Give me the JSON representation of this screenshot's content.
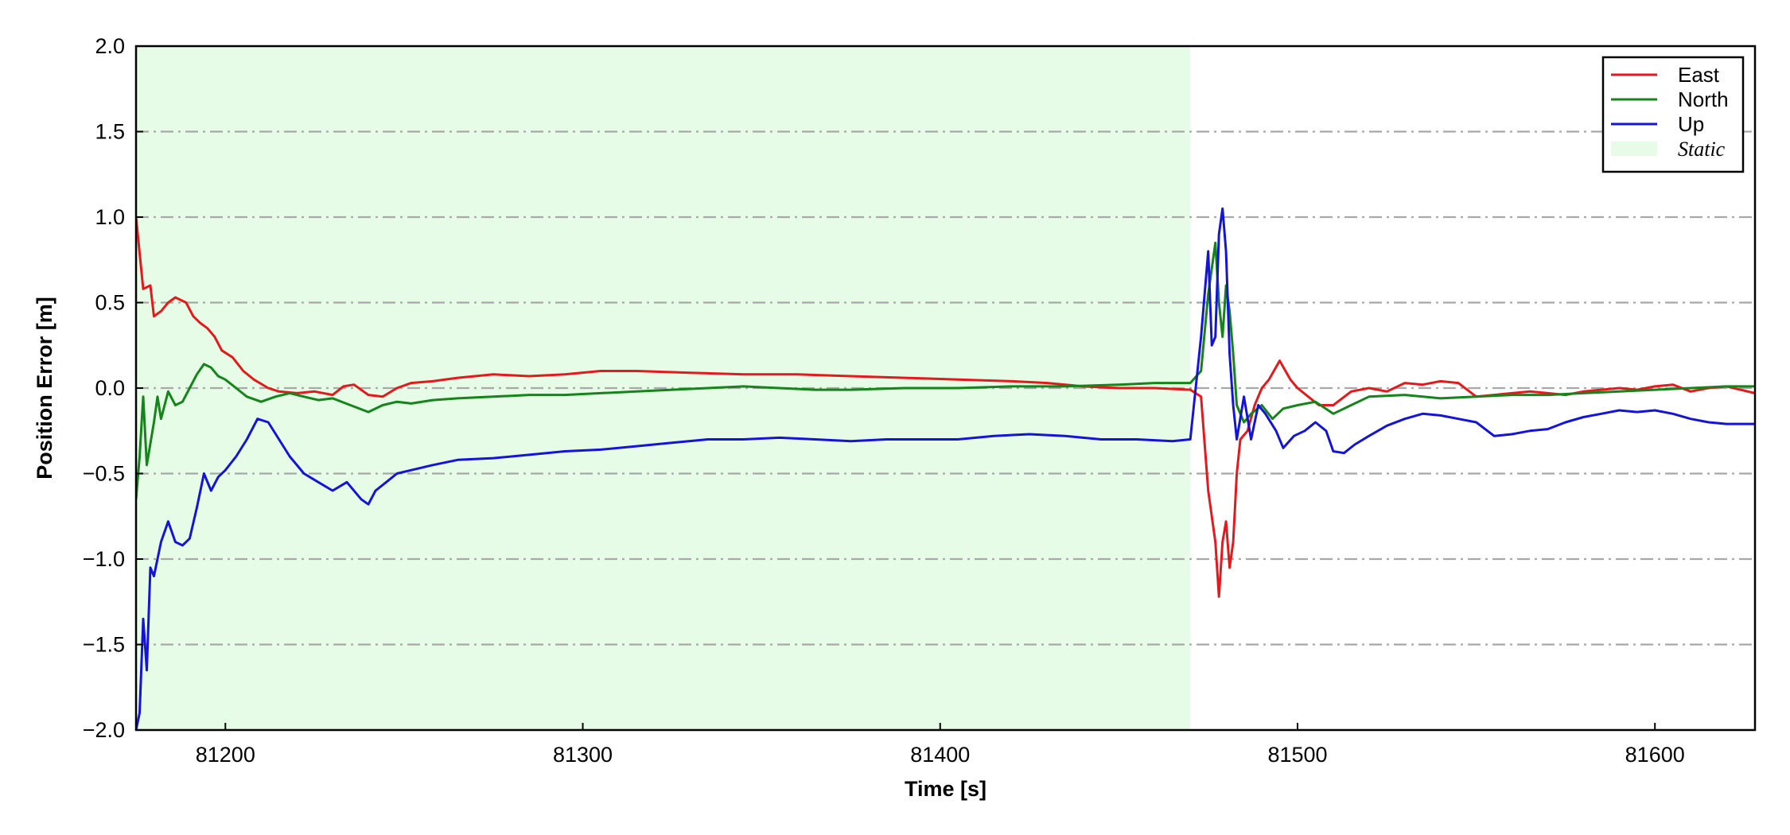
{
  "chart_data": {
    "type": "line",
    "title": "",
    "xlabel": "Time [s]",
    "ylabel": "Position Error [m]",
    "xlim": [
      81175,
      81628
    ],
    "ylim": [
      -2.0,
      2.0
    ],
    "xticks": [
      81200,
      81300,
      81400,
      81500,
      81600
    ],
    "xtick_labels": [
      "81200",
      "81300",
      "81400",
      "81500",
      "81600"
    ],
    "yticks": [
      2.0,
      1.5,
      1.0,
      0.5,
      0.0,
      -0.5,
      -1.0,
      -1.5,
      -2.0
    ],
    "ytick_labels": [
      "2.0",
      "1.5",
      "1.0",
      "0.5",
      "0.0",
      "−0.5",
      "−1.0",
      "−1.5",
      "−2.0"
    ],
    "grid": "horizontal dash-dot",
    "legend_position": "top-right",
    "shaded_regions": [
      {
        "name": "Static",
        "x_start": 81175,
        "x_end": 81470,
        "color": "#e6fce6"
      }
    ],
    "series": [
      {
        "name": "East",
        "color": "#e31a1c",
        "points": [
          [
            81175,
            1.0
          ],
          [
            81177,
            0.58
          ],
          [
            81179,
            0.6
          ],
          [
            81180,
            0.42
          ],
          [
            81182,
            0.45
          ],
          [
            81184,
            0.5
          ],
          [
            81186,
            0.53
          ],
          [
            81189,
            0.5
          ],
          [
            81191,
            0.42
          ],
          [
            81193,
            0.38
          ],
          [
            81195,
            0.35
          ],
          [
            81197,
            0.3
          ],
          [
            81199,
            0.22
          ],
          [
            81202,
            0.18
          ],
          [
            81205,
            0.1
          ],
          [
            81208,
            0.05
          ],
          [
            81212,
            0.0
          ],
          [
            81215,
            -0.02
          ],
          [
            81220,
            -0.03
          ],
          [
            81225,
            -0.02
          ],
          [
            81230,
            -0.04
          ],
          [
            81233,
            0.01
          ],
          [
            81236,
            0.02
          ],
          [
            81240,
            -0.04
          ],
          [
            81244,
            -0.05
          ],
          [
            81248,
            0.0
          ],
          [
            81252,
            0.03
          ],
          [
            81258,
            0.04
          ],
          [
            81265,
            0.06
          ],
          [
            81275,
            0.08
          ],
          [
            81285,
            0.07
          ],
          [
            81295,
            0.08
          ],
          [
            81305,
            0.1
          ],
          [
            81315,
            0.1
          ],
          [
            81330,
            0.09
          ],
          [
            81345,
            0.08
          ],
          [
            81360,
            0.08
          ],
          [
            81375,
            0.07
          ],
          [
            81390,
            0.06
          ],
          [
            81405,
            0.05
          ],
          [
            81420,
            0.04
          ],
          [
            81430,
            0.03
          ],
          [
            81440,
            0.01
          ],
          [
            81450,
            0.0
          ],
          [
            81460,
            0.0
          ],
          [
            81470,
            -0.01
          ],
          [
            81473,
            -0.05
          ],
          [
            81475,
            -0.6
          ],
          [
            81477,
            -0.9
          ],
          [
            81478,
            -1.22
          ],
          [
            81479,
            -0.9
          ],
          [
            81480,
            -0.78
          ],
          [
            81481,
            -1.05
          ],
          [
            81482,
            -0.9
          ],
          [
            81483,
            -0.5
          ],
          [
            81484,
            -0.3
          ],
          [
            81486,
            -0.25
          ],
          [
            81488,
            -0.1
          ],
          [
            81490,
            0.0
          ],
          [
            81492,
            0.05
          ],
          [
            81495,
            0.16
          ],
          [
            81498,
            0.05
          ],
          [
            81500,
            0.0
          ],
          [
            81503,
            -0.05
          ],
          [
            81506,
            -0.1
          ],
          [
            81510,
            -0.1
          ],
          [
            81515,
            -0.02
          ],
          [
            81520,
            0.0
          ],
          [
            81525,
            -0.02
          ],
          [
            81530,
            0.03
          ],
          [
            81535,
            0.02
          ],
          [
            81540,
            0.04
          ],
          [
            81545,
            0.03
          ],
          [
            81550,
            -0.05
          ],
          [
            81555,
            -0.04
          ],
          [
            81560,
            -0.03
          ],
          [
            81565,
            -0.02
          ],
          [
            81570,
            -0.03
          ],
          [
            81575,
            -0.04
          ],
          [
            81580,
            -0.02
          ],
          [
            81585,
            -0.01
          ],
          [
            81590,
            0.0
          ],
          [
            81595,
            -0.01
          ],
          [
            81600,
            0.01
          ],
          [
            81605,
            0.02
          ],
          [
            81610,
            -0.02
          ],
          [
            81615,
            0.0
          ],
          [
            81620,
            0.01
          ],
          [
            81628,
            -0.03
          ]
        ]
      },
      {
        "name": "North",
        "color": "#15841a",
        "points": [
          [
            81175,
            -0.65
          ],
          [
            81176,
            -0.4
          ],
          [
            81177,
            -0.05
          ],
          [
            81178,
            -0.45
          ],
          [
            81180,
            -0.2
          ],
          [
            81181,
            -0.05
          ],
          [
            81182,
            -0.18
          ],
          [
            81184,
            -0.02
          ],
          [
            81186,
            -0.1
          ],
          [
            81188,
            -0.08
          ],
          [
            81190,
            0.0
          ],
          [
            81192,
            0.08
          ],
          [
            81194,
            0.14
          ],
          [
            81196,
            0.12
          ],
          [
            81198,
            0.07
          ],
          [
            81200,
            0.05
          ],
          [
            81203,
            0.0
          ],
          [
            81206,
            -0.05
          ],
          [
            81210,
            -0.08
          ],
          [
            81214,
            -0.05
          ],
          [
            81218,
            -0.03
          ],
          [
            81222,
            -0.05
          ],
          [
            81226,
            -0.07
          ],
          [
            81230,
            -0.06
          ],
          [
            81235,
            -0.1
          ],
          [
            81240,
            -0.14
          ],
          [
            81244,
            -0.1
          ],
          [
            81248,
            -0.08
          ],
          [
            81252,
            -0.09
          ],
          [
            81258,
            -0.07
          ],
          [
            81265,
            -0.06
          ],
          [
            81275,
            -0.05
          ],
          [
            81285,
            -0.04
          ],
          [
            81295,
            -0.04
          ],
          [
            81305,
            -0.03
          ],
          [
            81315,
            -0.02
          ],
          [
            81325,
            -0.01
          ],
          [
            81335,
            0.0
          ],
          [
            81345,
            0.01
          ],
          [
            81355,
            0.0
          ],
          [
            81365,
            -0.01
          ],
          [
            81375,
            -0.01
          ],
          [
            81390,
            0.0
          ],
          [
            81405,
            0.0
          ],
          [
            81420,
            0.01
          ],
          [
            81435,
            0.01
          ],
          [
            81450,
            0.02
          ],
          [
            81460,
            0.03
          ],
          [
            81470,
            0.03
          ],
          [
            81473,
            0.1
          ],
          [
            81475,
            0.55
          ],
          [
            81477,
            0.85
          ],
          [
            81478,
            0.5
          ],
          [
            81479,
            0.3
          ],
          [
            81480,
            0.6
          ],
          [
            81481,
            0.45
          ],
          [
            81482,
            0.2
          ],
          [
            81483,
            -0.1
          ],
          [
            81485,
            -0.2
          ],
          [
            81487,
            -0.15
          ],
          [
            81490,
            -0.1
          ],
          [
            81493,
            -0.18
          ],
          [
            81496,
            -0.12
          ],
          [
            81500,
            -0.1
          ],
          [
            81505,
            -0.08
          ],
          [
            81510,
            -0.15
          ],
          [
            81515,
            -0.1
          ],
          [
            81520,
            -0.05
          ],
          [
            81530,
            -0.04
          ],
          [
            81540,
            -0.06
          ],
          [
            81550,
            -0.05
          ],
          [
            81560,
            -0.04
          ],
          [
            81570,
            -0.04
          ],
          [
            81580,
            -0.03
          ],
          [
            81590,
            -0.02
          ],
          [
            81600,
            -0.01
          ],
          [
            81610,
            0.0
          ],
          [
            81620,
            0.01
          ],
          [
            81628,
            0.01
          ]
        ]
      },
      {
        "name": "Up",
        "color": "#1414d8",
        "points": [
          [
            81175,
            -2.0
          ],
          [
            81176,
            -1.9
          ],
          [
            81177,
            -1.35
          ],
          [
            81178,
            -1.65
          ],
          [
            81179,
            -1.05
          ],
          [
            81180,
            -1.1
          ],
          [
            81182,
            -0.9
          ],
          [
            81184,
            -0.78
          ],
          [
            81186,
            -0.9
          ],
          [
            81188,
            -0.92
          ],
          [
            81190,
            -0.88
          ],
          [
            81192,
            -0.7
          ],
          [
            81194,
            -0.5
          ],
          [
            81196,
            -0.6
          ],
          [
            81198,
            -0.52
          ],
          [
            81200,
            -0.48
          ],
          [
            81203,
            -0.4
          ],
          [
            81206,
            -0.3
          ],
          [
            81209,
            -0.18
          ],
          [
            81212,
            -0.2
          ],
          [
            81215,
            -0.3
          ],
          [
            81218,
            -0.4
          ],
          [
            81222,
            -0.5
          ],
          [
            81226,
            -0.55
          ],
          [
            81230,
            -0.6
          ],
          [
            81234,
            -0.55
          ],
          [
            81238,
            -0.65
          ],
          [
            81240,
            -0.68
          ],
          [
            81242,
            -0.6
          ],
          [
            81245,
            -0.55
          ],
          [
            81248,
            -0.5
          ],
          [
            81252,
            -0.48
          ],
          [
            81258,
            -0.45
          ],
          [
            81265,
            -0.42
          ],
          [
            81275,
            -0.41
          ],
          [
            81285,
            -0.39
          ],
          [
            81295,
            -0.37
          ],
          [
            81305,
            -0.36
          ],
          [
            81315,
            -0.34
          ],
          [
            81325,
            -0.32
          ],
          [
            81335,
            -0.3
          ],
          [
            81345,
            -0.3
          ],
          [
            81355,
            -0.29
          ],
          [
            81365,
            -0.3
          ],
          [
            81375,
            -0.31
          ],
          [
            81385,
            -0.3
          ],
          [
            81395,
            -0.3
          ],
          [
            81405,
            -0.3
          ],
          [
            81415,
            -0.28
          ],
          [
            81425,
            -0.27
          ],
          [
            81435,
            -0.28
          ],
          [
            81445,
            -0.3
          ],
          [
            81455,
            -0.3
          ],
          [
            81465,
            -0.31
          ],
          [
            81470,
            -0.3
          ],
          [
            81473,
            0.3
          ],
          [
            81475,
            0.8
          ],
          [
            81476,
            0.25
          ],
          [
            81477,
            0.3
          ],
          [
            81478,
            0.9
          ],
          [
            81479,
            1.05
          ],
          [
            81480,
            0.8
          ],
          [
            81481,
            0.2
          ],
          [
            81482,
            -0.1
          ],
          [
            81483,
            -0.3
          ],
          [
            81485,
            -0.05
          ],
          [
            81487,
            -0.3
          ],
          [
            81489,
            -0.1
          ],
          [
            81491,
            -0.15
          ],
          [
            81494,
            -0.25
          ],
          [
            81496,
            -0.35
          ],
          [
            81499,
            -0.28
          ],
          [
            81502,
            -0.25
          ],
          [
            81505,
            -0.2
          ],
          [
            81508,
            -0.25
          ],
          [
            81510,
            -0.37
          ],
          [
            81513,
            -0.38
          ],
          [
            81516,
            -0.33
          ],
          [
            81520,
            -0.28
          ],
          [
            81525,
            -0.22
          ],
          [
            81530,
            -0.18
          ],
          [
            81535,
            -0.15
          ],
          [
            81540,
            -0.16
          ],
          [
            81545,
            -0.18
          ],
          [
            81550,
            -0.2
          ],
          [
            81555,
            -0.28
          ],
          [
            81560,
            -0.27
          ],
          [
            81565,
            -0.25
          ],
          [
            81570,
            -0.24
          ],
          [
            81575,
            -0.2
          ],
          [
            81580,
            -0.17
          ],
          [
            81585,
            -0.15
          ],
          [
            81590,
            -0.13
          ],
          [
            81595,
            -0.14
          ],
          [
            81600,
            -0.13
          ],
          [
            81605,
            -0.15
          ],
          [
            81610,
            -0.18
          ],
          [
            81615,
            -0.2
          ],
          [
            81620,
            -0.21
          ],
          [
            81628,
            -0.21
          ]
        ]
      }
    ]
  }
}
